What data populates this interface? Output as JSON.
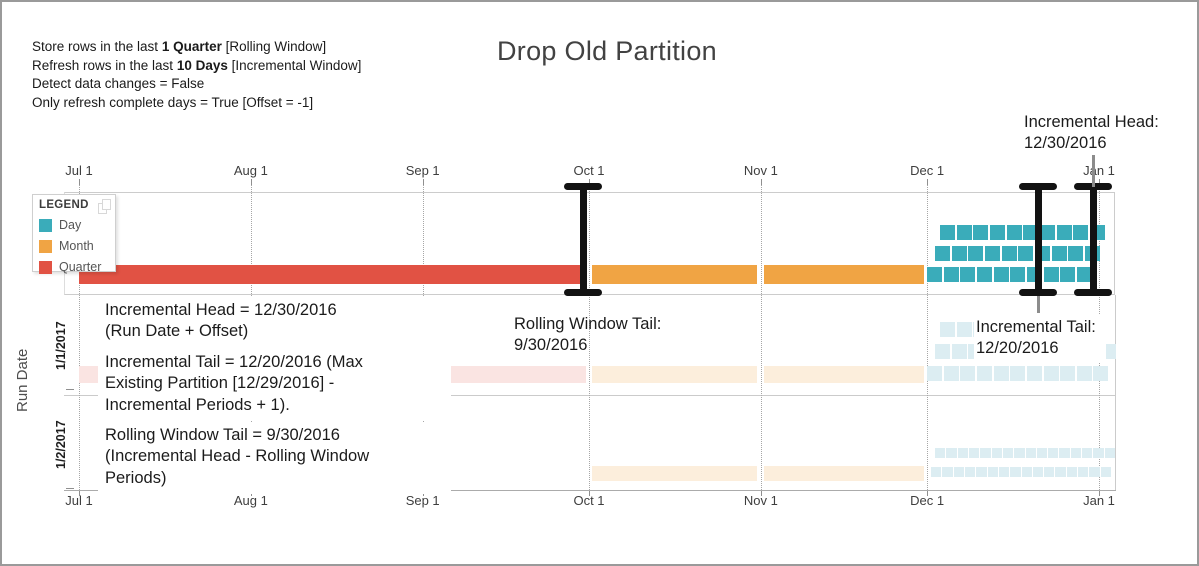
{
  "header": {
    "title": "Drop Old Partition",
    "config_lines": [
      {
        "pre": "Store rows in the last ",
        "bold": "1 Quarter",
        "post": " [Rolling Window]"
      },
      {
        "pre": "Refresh rows in the last ",
        "bold": "10 Days",
        "post": " [Incremental Window]"
      },
      {
        "pre": "Detect data changes = False",
        "bold": "",
        "post": ""
      },
      {
        "pre": "Only refresh complete days = True [Offset = -1]",
        "bold": "",
        "post": ""
      }
    ]
  },
  "legend": {
    "header": "LEGEND",
    "items": [
      {
        "label": "Day",
        "type": "Day"
      },
      {
        "label": "Month",
        "type": "Month"
      },
      {
        "label": "Quarter",
        "type": "Quarter"
      }
    ]
  },
  "annotations": {
    "incremental_head_label": {
      "lines": [
        "Incremental Head:",
        "12/30/2016"
      ]
    },
    "rolling_window_tail_label": {
      "lines": [
        "Rolling Window Tail:",
        "9/30/2016"
      ]
    },
    "incremental_tail_label": {
      "lines": [
        "Incremental Tail:",
        "12/20/2016"
      ]
    },
    "incremental_head_note": {
      "lines": [
        "Incremental Head = 12/30/2016",
        "(Run Date + Offset)"
      ]
    },
    "incremental_tail_note": {
      "lines": [
        "Incremental Tail = 12/20/2016 (Max",
        "Existing Partition [12/29/2016] -",
        "Incremental Periods + 1)."
      ]
    },
    "rolling_window_tail_note": {
      "lines": [
        "Rolling Window Tail = 9/30/2016",
        "(Incremental Head - Rolling Window",
        "Periods)"
      ]
    }
  },
  "chart_data": {
    "type": "timeline",
    "title": "Drop Old Partition",
    "x_axis": {
      "start": "7/1/2016",
      "end": "1/1/2017",
      "ticks": [
        {
          "label": "Jul 1",
          "date": "7/1/2016"
        },
        {
          "label": "Aug 1",
          "date": "8/1/2016"
        },
        {
          "label": "Sep 1",
          "date": "9/1/2016"
        },
        {
          "label": "Oct 1",
          "date": "10/1/2016"
        },
        {
          "label": "Nov 1",
          "date": "11/1/2016"
        },
        {
          "label": "Dec 1",
          "date": "12/1/2016"
        },
        {
          "label": "Jan 1",
          "date": "1/1/2017"
        }
      ]
    },
    "y_axis": {
      "label": "Run Date",
      "row_labels": [
        "1/1/2017",
        "1/2/2017"
      ]
    },
    "colors": {
      "Day": "#3AACBA",
      "Month": "#F0A444",
      "Quarter": "#E15244",
      "Day_faded": "#DCEDF2",
      "Month_faded": "#FCEEDC",
      "Quarter_faded": "#FAE4E2"
    },
    "rows": [
      {
        "id": "partition-scheme",
        "faded": false,
        "partitions": [
          {
            "type": "Quarter",
            "start": "7/1/2016",
            "end": "10/1/2016"
          },
          {
            "type": "Month",
            "start": "10/1/2016",
            "end": "11/1/2016"
          },
          {
            "type": "Month",
            "start": "11/1/2016",
            "end": "12/1/2016"
          },
          {
            "type": "Day",
            "start": "12/1/2016",
            "end": "12/31/2016"
          }
        ]
      },
      {
        "id": "run-1/1/2017",
        "faded": true,
        "partitions": [
          {
            "type": "Quarter",
            "start": "7/1/2016",
            "end": "10/1/2016"
          },
          {
            "type": "Month",
            "start": "10/1/2016",
            "end": "11/1/2016"
          },
          {
            "type": "Month",
            "start": "11/1/2016",
            "end": "12/1/2016"
          },
          {
            "type": "Day",
            "start": "12/1/2016",
            "end": "1/1/2017"
          }
        ]
      },
      {
        "id": "run-1/2/2017",
        "faded": true,
        "partitions": [
          {
            "type": "Month",
            "start": "10/1/2016",
            "end": "11/1/2016"
          },
          {
            "type": "Month",
            "start": "11/1/2016",
            "end": "12/1/2016"
          },
          {
            "type": "Day",
            "start": "12/1/2016",
            "end": "1/2/2017"
          }
        ]
      }
    ],
    "markers": [
      {
        "name": "rolling-window-tail",
        "date": "9/30/2016",
        "value": "9/30/2016",
        "stem": "none"
      },
      {
        "name": "incremental-tail",
        "date": "12/21/2016",
        "value": "12/20/2016",
        "stem": "down"
      },
      {
        "name": "incremental-head",
        "date": "12/31/2016",
        "value": "12/30/2016",
        "stem": "up"
      }
    ]
  }
}
